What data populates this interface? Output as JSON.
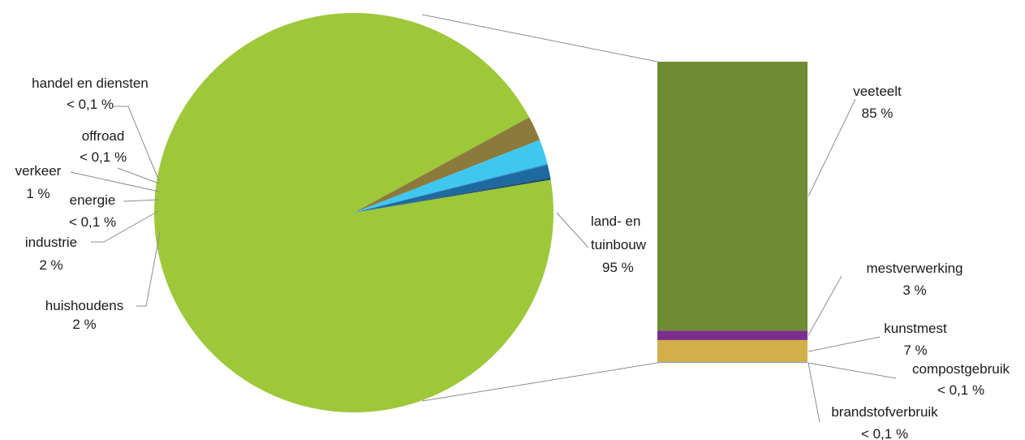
{
  "chart_data": [
    {
      "type": "pie",
      "categories": [
        "land- en tuinbouw",
        "huishoudens",
        "industrie",
        "energie",
        "verkeer",
        "offroad",
        "handel en diensten"
      ],
      "values": [
        95,
        2,
        2,
        0.1,
        1,
        0.1,
        0.1
      ],
      "value_labels": [
        "95 %",
        "2 %",
        "2 %",
        "< 0,1 %",
        "1 %",
        "< 0,1 %",
        "< 0,1 %"
      ],
      "colors": [
        "#9dc83a",
        "#8c7a3c",
        "#3ec8f0",
        "#2a8fd0",
        "#1c6aa0",
        "#1a4f7a",
        "#123d60"
      ]
    },
    {
      "type": "bar",
      "stacked": true,
      "parent_category": "land- en tuinbouw",
      "categories": [
        "veeteelt",
        "mestverwerking",
        "kunstmest",
        "compostgebruik",
        "brandstofverbruik"
      ],
      "values": [
        85,
        3,
        7,
        0.1,
        0.1
      ],
      "value_labels": [
        "85 %",
        "3 %",
        "7 %",
        "< 0,1 %",
        "< 0,1 %"
      ],
      "colors": [
        "#6e8c32",
        "#7a2f8c",
        "#d4b04a",
        "#5f7fa8",
        "#8aa8d0"
      ]
    }
  ]
}
